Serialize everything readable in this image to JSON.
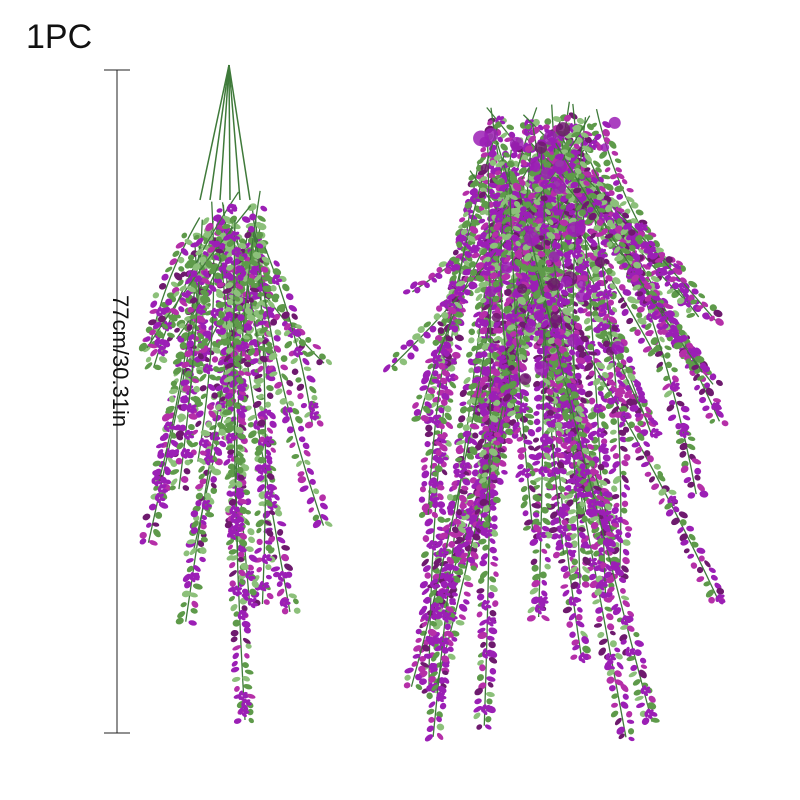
{
  "label": "1PC",
  "measurement": "77cm/30.31in",
  "colors": {
    "leaf_green": "#5e9a4a",
    "leaf_light": "#8cc07a",
    "stem": "#3f7a3a",
    "flower_purple": "#9b1fb5",
    "flower_magenta": "#b52fa8",
    "flower_dark": "#6e1a6e",
    "line": "#222222"
  }
}
